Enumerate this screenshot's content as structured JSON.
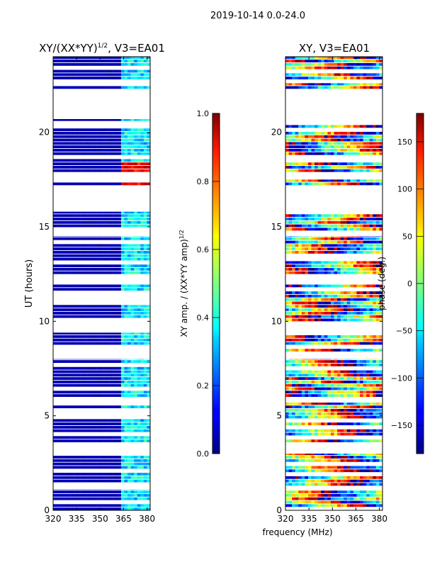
{
  "figure_title": "2019-10-14 0.0-24.0",
  "shared_xlabel": "frequency (MHz)",
  "chart_data": [
    {
      "type": "heatmap",
      "title": "XY/(XX*YY)",
      "title_exponent": "1/2",
      "title_suffix": ", V3=EA01",
      "xlabel": "",
      "ylabel": "UT (hours)",
      "xlim": [
        320,
        382
      ],
      "xticks": [
        320,
        335,
        350,
        365,
        380
      ],
      "ylim": [
        0,
        24
      ],
      "yticks": [
        0,
        5,
        10,
        15,
        20
      ],
      "colorbar": {
        "label": "XY amp. / (XX*YY amp)",
        "label_exponent": "1/2",
        "range": [
          0.0,
          1.0
        ],
        "ticks": [
          "0.0",
          "0.2",
          "0.4",
          "0.6",
          "0.8",
          "1.0"
        ],
        "colormap": "jet"
      },
      "observed_time_blocks_hours": [
        [
          0.0,
          1.1
        ],
        [
          1.3,
          3.0
        ],
        [
          3.6,
          5.7
        ],
        [
          6.0,
          8.0
        ],
        [
          8.4,
          9.4
        ],
        [
          10.0,
          12.1
        ],
        [
          12.5,
          14.5
        ],
        [
          14.8,
          15.8
        ],
        [
          17.2,
          17.5
        ],
        [
          17.9,
          20.7
        ],
        [
          22.3,
          22.6
        ],
        [
          22.8,
          24.0
        ]
      ],
      "description_values": {
        "low_band_typical": 0.05,
        "rfi_band_362_380_typical": 0.35,
        "high_events_hours": [
          17.3,
          18.1
        ]
      }
    },
    {
      "type": "heatmap",
      "title": "XY, V3=EA01",
      "xlabel": "",
      "ylabel": "",
      "xlim": [
        320,
        382
      ],
      "xticks": [
        320,
        335,
        350,
        365,
        380
      ],
      "ylim": [
        0,
        24
      ],
      "yticks": [
        0,
        5,
        10,
        15,
        20
      ],
      "colorbar": {
        "label": "phase (deg.)",
        "range": [
          -180,
          180
        ],
        "ticks": [
          "−150",
          "−100",
          "−50",
          "0",
          "50",
          "100",
          "150"
        ],
        "colormap": "jet"
      },
      "observed_time_blocks_hours": [
        [
          0.0,
          1.1
        ],
        [
          1.3,
          3.0
        ],
        [
          3.6,
          5.7
        ],
        [
          6.0,
          8.0
        ],
        [
          8.4,
          9.4
        ],
        [
          10.0,
          12.1
        ],
        [
          12.5,
          14.5
        ],
        [
          14.8,
          15.8
        ],
        [
          17.2,
          17.5
        ],
        [
          17.9,
          20.7
        ],
        [
          22.3,
          22.6
        ],
        [
          22.8,
          24.0
        ]
      ]
    }
  ]
}
